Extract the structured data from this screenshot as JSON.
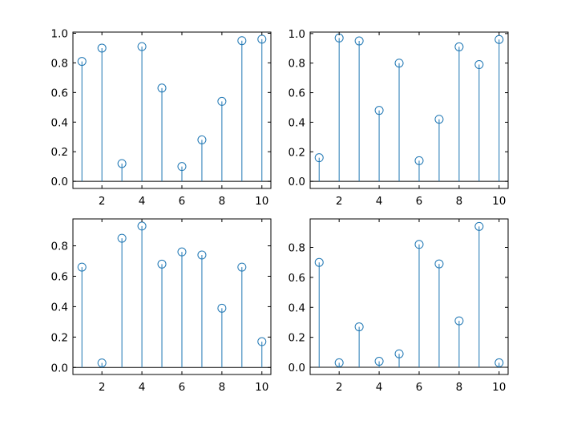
{
  "chart_data": [
    {
      "type": "stem",
      "position": "top-left",
      "x": [
        1,
        2,
        3,
        4,
        5,
        6,
        7,
        8,
        9,
        10
      ],
      "values": [
        0.81,
        0.9,
        0.12,
        0.91,
        0.63,
        0.1,
        0.28,
        0.54,
        0.95,
        0.96
      ],
      "xticks": [
        2,
        4,
        6,
        8,
        10
      ],
      "yticks": [
        0.0,
        0.2,
        0.4,
        0.6,
        0.8,
        1.0
      ],
      "ytick_labels": [
        "0.0",
        "0.2",
        "0.4",
        "0.6",
        "0.8",
        "1.0"
      ],
      "xlim": [
        0.55,
        10.45
      ],
      "ylim": [
        -0.048,
        1.008
      ],
      "color": "#1f77b4"
    },
    {
      "type": "stem",
      "position": "top-right",
      "x": [
        1,
        2,
        3,
        4,
        5,
        6,
        7,
        8,
        9,
        10
      ],
      "values": [
        0.16,
        0.97,
        0.95,
        0.48,
        0.8,
        0.14,
        0.42,
        0.91,
        0.79,
        0.96
      ],
      "xticks": [
        2,
        4,
        6,
        8,
        10
      ],
      "yticks": [
        0.0,
        0.2,
        0.4,
        0.6,
        0.8,
        1.0
      ],
      "ytick_labels": [
        "0.0",
        "0.2",
        "0.4",
        "0.6",
        "0.8",
        "1.0"
      ],
      "xlim": [
        0.55,
        10.45
      ],
      "ylim": [
        -0.048,
        1.01
      ],
      "color": "#1f77b4"
    },
    {
      "type": "stem",
      "position": "bottom-left",
      "x": [
        1,
        2,
        3,
        4,
        5,
        6,
        7,
        8,
        9,
        10
      ],
      "values": [
        0.66,
        0.03,
        0.85,
        0.93,
        0.68,
        0.76,
        0.74,
        0.39,
        0.66,
        0.17
      ],
      "xticks": [
        2,
        4,
        6,
        8,
        10
      ],
      "yticks": [
        0.0,
        0.2,
        0.4,
        0.6,
        0.8
      ],
      "ytick_labels": [
        "0.0",
        "0.2",
        "0.4",
        "0.6",
        "0.8"
      ],
      "xlim": [
        0.55,
        10.45
      ],
      "ylim": [
        -0.046,
        0.977
      ],
      "color": "#1f77b4"
    },
    {
      "type": "stem",
      "position": "bottom-right",
      "x": [
        1,
        2,
        3,
        4,
        5,
        6,
        7,
        8,
        9,
        10
      ],
      "values": [
        0.7,
        0.03,
        0.27,
        0.04,
        0.09,
        0.82,
        0.69,
        0.31,
        0.94,
        0.03
      ],
      "xticks": [
        2,
        4,
        6,
        8,
        10
      ],
      "yticks": [
        0.0,
        0.2,
        0.4,
        0.6,
        0.8
      ],
      "ytick_labels": [
        "0.0",
        "0.2",
        "0.4",
        "0.6",
        "0.8"
      ],
      "xlim": [
        0.55,
        10.45
      ],
      "ylim": [
        -0.048,
        0.99
      ],
      "color": "#1f77b4"
    }
  ]
}
